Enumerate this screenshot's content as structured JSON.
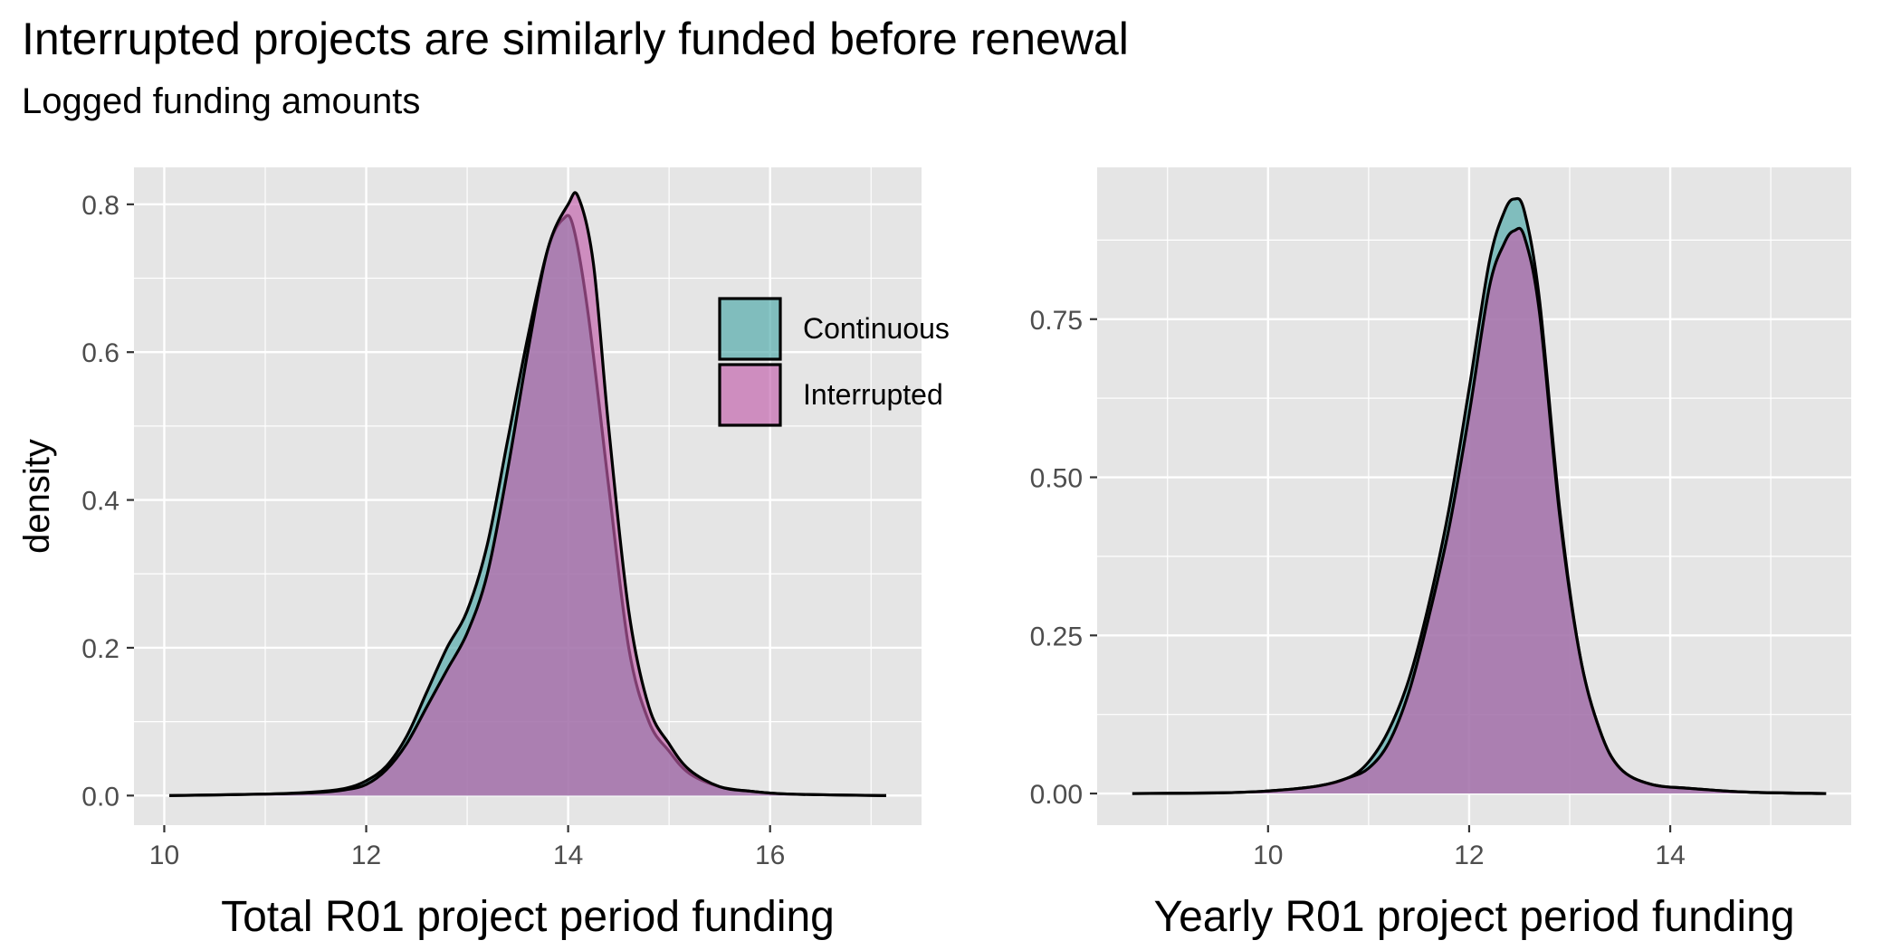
{
  "title": "Interrupted projects are similarly funded before renewal",
  "subtitle": "Logged funding amounts",
  "colors": {
    "panel_bg": "#E5E5E5",
    "grid": "#FFFFFF",
    "continuous_fill": "#49A7A7",
    "interrupted_fill": "#C25EAA",
    "outline": "#000000",
    "tick_text": "#4D4D4D"
  },
  "legend": {
    "items": [
      {
        "label": "Continuous",
        "color": "#49A7A7"
      },
      {
        "label": "Interrupted",
        "color": "#C25EAA"
      }
    ]
  },
  "chart_data": [
    {
      "type": "area",
      "chart_kind": "density",
      "xlabel": "Total R01 project period funding",
      "ylabel": "density",
      "xlim": [
        9.7,
        17.5
      ],
      "ylim": [
        -0.04,
        0.85
      ],
      "xticks": [
        10,
        12,
        14,
        16
      ],
      "xtick_labels": [
        "10",
        "12",
        "14",
        "16"
      ],
      "yticks": [
        0.0,
        0.2,
        0.4,
        0.6,
        0.8
      ],
      "ytick_labels": [
        "0.0",
        "0.2",
        "0.4",
        "0.6",
        "0.8"
      ],
      "legend_position": "inside-top-right",
      "series": [
        {
          "name": "Continuous",
          "x": [
            10.05,
            11.0,
            11.5,
            11.8,
            12.0,
            12.2,
            12.4,
            12.6,
            12.8,
            13.0,
            13.2,
            13.4,
            13.6,
            13.8,
            13.95,
            14.05,
            14.2,
            14.4,
            14.6,
            14.8,
            15.0,
            15.2,
            15.5,
            15.8,
            16.2,
            17.15
          ],
          "y": [
            0.0,
            0.002,
            0.005,
            0.01,
            0.02,
            0.04,
            0.08,
            0.14,
            0.2,
            0.25,
            0.34,
            0.48,
            0.62,
            0.74,
            0.78,
            0.77,
            0.65,
            0.42,
            0.2,
            0.1,
            0.06,
            0.03,
            0.012,
            0.006,
            0.002,
            0.0
          ]
        },
        {
          "name": "Interrupted",
          "x": [
            10.05,
            11.0,
            11.5,
            11.8,
            12.0,
            12.2,
            12.4,
            12.6,
            12.8,
            13.0,
            13.2,
            13.4,
            13.6,
            13.8,
            14.0,
            14.1,
            14.25,
            14.4,
            14.6,
            14.8,
            15.0,
            15.2,
            15.5,
            15.8,
            16.2,
            17.15
          ],
          "y": [
            0.0,
            0.002,
            0.004,
            0.008,
            0.015,
            0.035,
            0.07,
            0.12,
            0.17,
            0.22,
            0.3,
            0.44,
            0.6,
            0.74,
            0.8,
            0.81,
            0.72,
            0.5,
            0.25,
            0.12,
            0.07,
            0.035,
            0.012,
            0.006,
            0.002,
            0.0
          ]
        }
      ]
    },
    {
      "type": "area",
      "chart_kind": "density",
      "xlabel": "Yearly R01 project period funding",
      "ylabel": "",
      "xlim": [
        8.3,
        15.8
      ],
      "ylim": [
        -0.05,
        0.99
      ],
      "xticks": [
        10,
        12,
        14
      ],
      "xtick_labels": [
        "10",
        "12",
        "14"
      ],
      "yticks": [
        0.0,
        0.25,
        0.5,
        0.75
      ],
      "ytick_labels": [
        "0.00",
        "0.25",
        "0.50",
        "0.75"
      ],
      "series": [
        {
          "name": "Continuous",
          "x": [
            8.65,
            9.5,
            10.0,
            10.5,
            10.8,
            11.0,
            11.2,
            11.4,
            11.6,
            11.8,
            12.0,
            12.2,
            12.35,
            12.45,
            12.55,
            12.7,
            12.9,
            13.1,
            13.3,
            13.5,
            13.8,
            14.2,
            14.8,
            15.55
          ],
          "y": [
            0.0,
            0.001,
            0.004,
            0.012,
            0.025,
            0.05,
            0.1,
            0.18,
            0.3,
            0.45,
            0.64,
            0.84,
            0.92,
            0.94,
            0.92,
            0.78,
            0.45,
            0.22,
            0.1,
            0.04,
            0.015,
            0.008,
            0.002,
            0.0
          ]
        },
        {
          "name": "Interrupted",
          "x": [
            8.65,
            9.5,
            10.0,
            10.5,
            10.8,
            11.0,
            11.2,
            11.4,
            11.6,
            11.8,
            12.0,
            12.2,
            12.35,
            12.45,
            12.55,
            12.7,
            12.9,
            13.1,
            13.3,
            13.5,
            13.8,
            14.2,
            14.8,
            15.55
          ],
          "y": [
            0.0,
            0.001,
            0.004,
            0.012,
            0.025,
            0.04,
            0.08,
            0.16,
            0.28,
            0.42,
            0.6,
            0.8,
            0.87,
            0.89,
            0.88,
            0.76,
            0.44,
            0.22,
            0.1,
            0.04,
            0.015,
            0.008,
            0.002,
            0.0
          ]
        }
      ]
    }
  ]
}
